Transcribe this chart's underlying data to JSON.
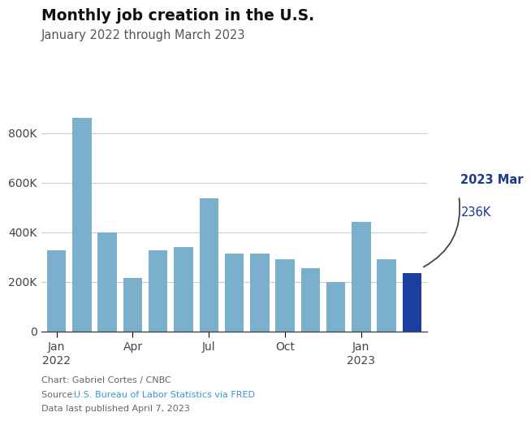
{
  "title": "Monthly job creation in the U.S.",
  "subtitle": "January 2022 through March 2023",
  "tick_labels": [
    "Jan\n2022",
    "Apr",
    "Jul",
    "Oct",
    "Jan\n2023"
  ],
  "tick_positions": [
    0,
    3,
    6,
    9,
    12
  ],
  "values": [
    329000,
    861000,
    398000,
    217000,
    329000,
    341000,
    537000,
    315000,
    315000,
    290000,
    256000,
    199000,
    443000,
    290000,
    236000
  ],
  "bar_color_normal": "#7ab0cc",
  "bar_color_highlight": "#1a3fa3",
  "highlight_index": 14,
  "annotation_label_bold": "2023 Mar",
  "annotation_label_value": "236K",
  "annotation_color": "#1a3a8c",
  "ytick_values": [
    0,
    200000,
    400000,
    600000,
    800000
  ],
  "ytick_labels": [
    "0",
    "200K",
    "400K",
    "600K",
    "800K"
  ],
  "ylim": [
    0,
    950000
  ],
  "footer_line1": "Chart: Gabriel Cortes / CNBC",
  "footer_line2_prefix": "Source: ",
  "footer_line2_link": "U.S. Bureau of Labor Statistics via FRED",
  "footer_line3": "Data last published April 7, 2023",
  "footer_color_normal": "#666666",
  "footer_color_link": "#3399cc",
  "background_color": "#ffffff",
  "grid_color": "#cccccc"
}
